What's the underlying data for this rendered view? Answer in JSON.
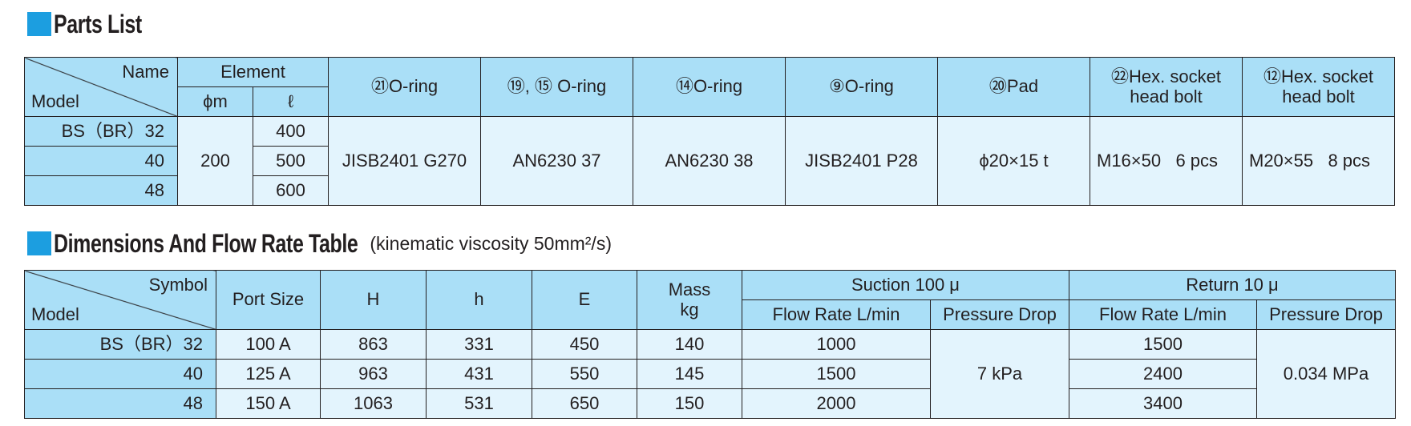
{
  "parts_list": {
    "title": "Parts List",
    "header": {
      "name": "Name",
      "model": "Model",
      "element": "Element",
      "phi_m": "ϕm",
      "l": "ℓ",
      "columns": [
        "㉑O-ring",
        "⑲, ⑮ O-ring",
        "⑭O-ring",
        "⑨O-ring",
        "⑳Pad",
        "㉒Hex. socket head bolt",
        "⑫Hex. socket head bolt"
      ]
    },
    "rows": [
      {
        "model": "BS（BR）32",
        "l": "400"
      },
      {
        "model": "40",
        "l": "500"
      },
      {
        "model": "48",
        "l": "600"
      }
    ],
    "phi_m": "200",
    "shared": [
      "JISB2401 G270",
      "AN6230 37",
      "AN6230 38",
      "JISB2401 P28",
      "ϕ20×15 t",
      "M16×50   6 pcs",
      "M20×55   8 pcs"
    ]
  },
  "dimensions": {
    "title": "Dimensions And Flow Rate Table",
    "subtitle": "(kinematic viscosity 50mm²/s)",
    "header": {
      "symbol": "Symbol",
      "model": "Model",
      "port_size": "Port Size",
      "H": "H",
      "h": "h",
      "E": "E",
      "mass": "Mass",
      "mass_unit": "kg",
      "suction": "Suction 100 μ",
      "return": "Return 10 μ",
      "flow_rate": "Flow Rate L/min",
      "pressure_drop": "Pressure Drop"
    },
    "rows": [
      {
        "model": "BS（BR）32",
        "port_size": "100 A",
        "H": "863",
        "h": "331",
        "E": "450",
        "mass": "140",
        "suction_flow": "1000",
        "return_flow": "1500"
      },
      {
        "model": "40",
        "port_size": "125 A",
        "H": "963",
        "h": "431",
        "E": "550",
        "mass": "145",
        "suction_flow": "1500",
        "return_flow": "2400"
      },
      {
        "model": "48",
        "port_size": "150 A",
        "H": "1063",
        "h": "531",
        "E": "650",
        "mass": "150",
        "suction_flow": "2000",
        "return_flow": "3400"
      }
    ],
    "suction_pressure_drop": "7 kPa",
    "return_pressure_drop": "0.034 MPa"
  }
}
